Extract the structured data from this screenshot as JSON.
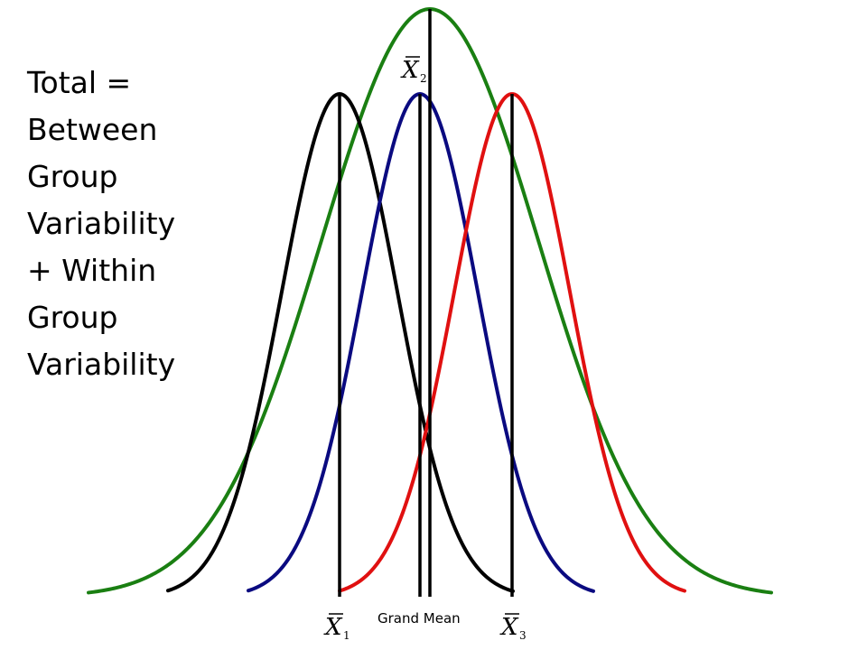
{
  "caption": {
    "lines": [
      "Total =",
      "Between",
      "Group",
      "Variability",
      "+ Within",
      "Group",
      "Variability"
    ]
  },
  "curves": [
    {
      "id": "total",
      "color": "#1a7f12",
      "mean": 476,
      "sd": 120,
      "peak_y": 10,
      "x_start": 98,
      "x_end": 854
    },
    {
      "id": "group-1",
      "color": "#000000",
      "mean": 376,
      "sd": 64,
      "peak_y": 104,
      "x_start": 186,
      "x_end": 568
    },
    {
      "id": "group-2",
      "color": "#0a0a80",
      "mean": 465,
      "sd": 64,
      "peak_y": 104,
      "x_start": 275,
      "x_end": 658
    },
    {
      "id": "group-3",
      "color": "#e01010",
      "mean": 567,
      "sd": 64,
      "peak_y": 104,
      "x_start": 376,
      "x_end": 758
    }
  ],
  "mean_lines": [
    {
      "id": "x1-bar",
      "x": 376,
      "top": 104
    },
    {
      "id": "x2-bar",
      "x": 465,
      "top": 104
    },
    {
      "id": "grand-mean",
      "x": 476,
      "top": 10
    },
    {
      "id": "x3-bar",
      "x": 567,
      "top": 104
    }
  ],
  "labels": {
    "x1": {
      "letter": "X",
      "subscript": "1"
    },
    "x2": {
      "letter": "X",
      "subscript": "2"
    },
    "x3": {
      "letter": "X",
      "subscript": "3"
    },
    "grand_mean": "Grand Mean"
  },
  "baseline_y": 661
}
